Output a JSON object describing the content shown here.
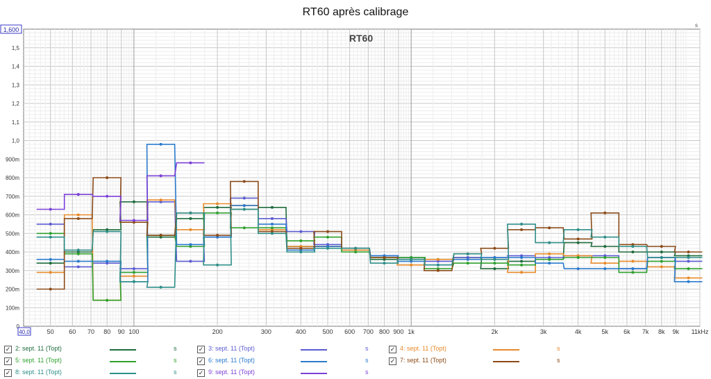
{
  "chart_data": {
    "type": "line",
    "title": "RT60 après calibrage",
    "subtitle": "RT60",
    "x_scale": "log",
    "xlim": [
      40,
      11000
    ],
    "ylim": [
      0,
      1.6
    ],
    "y_unit": "s",
    "x_min_label": "40,0",
    "y_max_label": "1,600",
    "x_ticks": [
      {
        "v": 50,
        "label": "50"
      },
      {
        "v": 60,
        "label": "60"
      },
      {
        "v": 70,
        "label": "70"
      },
      {
        "v": 80,
        "label": "80"
      },
      {
        "v": 90,
        "label": "90"
      },
      {
        "v": 100,
        "label": "100"
      },
      {
        "v": 200,
        "label": "200"
      },
      {
        "v": 300,
        "label": "300"
      },
      {
        "v": 400,
        "label": "400"
      },
      {
        "v": 500,
        "label": "500"
      },
      {
        "v": 600,
        "label": "600"
      },
      {
        "v": 700,
        "label": "700"
      },
      {
        "v": 800,
        "label": "800"
      },
      {
        "v": 900,
        "label": "900"
      },
      {
        "v": 1000,
        "label": "1k"
      },
      {
        "v": 2000,
        "label": "2k"
      },
      {
        "v": 3000,
        "label": "3k"
      },
      {
        "v": 4000,
        "label": "4k"
      },
      {
        "v": 5000,
        "label": "5k"
      },
      {
        "v": 6000,
        "label": "6k"
      },
      {
        "v": 7000,
        "label": "7k"
      },
      {
        "v": 8000,
        "label": "8k"
      },
      {
        "v": 9000,
        "label": "9k"
      },
      {
        "v": 11000,
        "label": "11kHz"
      }
    ],
    "y_ticks": [
      {
        "v": 0,
        "label": "0"
      },
      {
        "v": 0.1,
        "label": "100m"
      },
      {
        "v": 0.2,
        "label": "200m"
      },
      {
        "v": 0.3,
        "label": "300m"
      },
      {
        "v": 0.4,
        "label": "400m"
      },
      {
        "v": 0.5,
        "label": "500m"
      },
      {
        "v": 0.6,
        "label": "600m"
      },
      {
        "v": 0.7,
        "label": "700m"
      },
      {
        "v": 0.8,
        "label": "800m"
      },
      {
        "v": 0.9,
        "label": "900m"
      },
      {
        "v": 1.0,
        "label": "1,0"
      },
      {
        "v": 1.1,
        "label": "1,1"
      },
      {
        "v": 1.2,
        "label": "1,2"
      },
      {
        "v": 1.3,
        "label": "1,3"
      },
      {
        "v": 1.4,
        "label": "1,4"
      },
      {
        "v": 1.5,
        "label": "1,5"
      }
    ],
    "y_axis_unit_label": "s",
    "grid": true,
    "legend_position": "bottom",
    "band_centers": [
      50,
      63,
      80,
      100,
      125,
      160,
      200,
      250,
      315,
      400,
      500,
      630,
      800,
      1000,
      1250,
      1600,
      2000,
      2500,
      3150,
      4000,
      5000,
      6300,
      8000,
      10000
    ],
    "series": [
      {
        "name": "2: sept. 11 (Topt)",
        "color": "#1e6b3c",
        "unit": "s",
        "values": [
          0.34,
          0.4,
          0.52,
          0.67,
          0.48,
          0.58,
          0.64,
          0.63,
          0.64,
          0.43,
          0.43,
          0.41,
          0.36,
          0.37,
          0.36,
          0.37,
          0.31,
          0.35,
          0.36,
          0.45,
          0.43,
          0.4,
          0.4,
          0.38
        ]
      },
      {
        "name": "3: sept. 11 (Topt)",
        "color": "#5a5ad2",
        "unit": "s",
        "values": [
          0.55,
          0.32,
          0.34,
          0.31,
          0.67,
          0.35,
          0.48,
          0.69,
          0.58,
          0.51,
          0.44,
          0.42,
          0.38,
          0.36,
          0.35,
          0.37,
          0.37,
          0.38,
          0.37,
          0.38,
          0.38,
          0.31,
          0.37,
          0.35
        ]
      },
      {
        "name": "4: sept. 11 (Topt)",
        "color": "#e88a2a",
        "unit": "s",
        "values": [
          0.29,
          0.6,
          0.14,
          0.27,
          0.68,
          0.52,
          0.66,
          0.65,
          0.52,
          0.43,
          0.43,
          0.41,
          0.37,
          0.33,
          0.36,
          0.36,
          0.36,
          0.29,
          0.39,
          0.38,
          0.34,
          0.35,
          0.32,
          0.26
        ]
      },
      {
        "name": "5: sept. 11 (Topt)",
        "color": "#2ea02e",
        "unit": "s",
        "values": [
          0.5,
          0.39,
          0.14,
          0.29,
          0.49,
          0.43,
          0.61,
          0.53,
          0.53,
          0.46,
          0.48,
          0.4,
          0.37,
          0.37,
          0.31,
          0.34,
          0.34,
          0.33,
          0.36,
          0.37,
          0.37,
          0.29,
          0.35,
          0.31
        ]
      },
      {
        "name": "6: sept. 11 (Topt)",
        "color": "#2a7acc",
        "unit": "s",
        "values": [
          0.36,
          0.35,
          0.35,
          0.24,
          0.98,
          0.44,
          0.48,
          0.65,
          0.55,
          0.41,
          0.43,
          0.42,
          0.38,
          0.35,
          0.33,
          0.36,
          0.37,
          0.37,
          0.34,
          0.31,
          0.31,
          0.31,
          0.37,
          0.24
        ]
      },
      {
        "name": "7: sept. 11 (Topt)",
        "color": "#8b4a18",
        "unit": "s",
        "values": [
          0.2,
          0.58,
          0.8,
          0.56,
          0.49,
          0.61,
          0.49,
          0.78,
          0.51,
          0.42,
          0.51,
          0.42,
          0.37,
          0.36,
          0.3,
          0.39,
          0.42,
          0.52,
          0.53,
          0.47,
          0.61,
          0.44,
          0.43,
          0.4
        ]
      },
      {
        "name": "8: sept. 11 (Topt)",
        "color": "#2e8e88",
        "unit": "s",
        "values": [
          0.48,
          0.41,
          0.51,
          0.24,
          0.21,
          0.61,
          0.33,
          0.63,
          0.5,
          0.4,
          0.42,
          0.42,
          0.34,
          0.36,
          0.33,
          0.39,
          0.36,
          0.55,
          0.45,
          0.52,
          0.48,
          0.43,
          0.37,
          0.37
        ]
      },
      {
        "name": "9: sept. 11 (Topt)",
        "color": "#7a3fd8",
        "unit": "s",
        "values": [
          0.63,
          0.71,
          0.7,
          0.57,
          0.81,
          0.88
        ]
      }
    ]
  }
}
